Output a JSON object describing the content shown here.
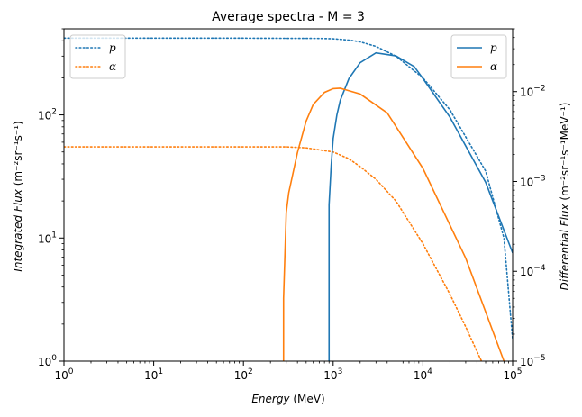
{
  "chart_data": {
    "type": "line",
    "title": "Average spectra - M = 3",
    "x_axis": {
      "label_main": "Energy",
      "label_unit": "(MeV)",
      "scale": "log",
      "range": [
        1,
        100000
      ],
      "tick_labels": [
        "10^0",
        "10^1",
        "10^2",
        "10^3",
        "10^4",
        "10^5"
      ]
    },
    "y_left_axis": {
      "label_main": "Integrated Flux",
      "label_unit": "(m⁻²sr⁻¹s⁻¹)",
      "scale": "log",
      "range": [
        1,
        500
      ],
      "tick_labels": [
        "10^0",
        "10^1",
        "10^2"
      ]
    },
    "y_right_axis": {
      "label_main": "Differential Flux",
      "label_unit": "(m⁻²sr⁻¹s⁻¹MeV⁻¹)",
      "scale": "log",
      "range": [
        1e-05,
        0.05
      ],
      "tick_labels": [
        "10^-5",
        "10^-4",
        "10^-3",
        "10^-2"
      ]
    },
    "legend_left": {
      "placement": "upper-left",
      "entries": [
        "p",
        "α"
      ],
      "style": "dotted"
    },
    "legend_right": {
      "placement": "upper-right",
      "entries": [
        "p",
        "α"
      ],
      "style": "solid"
    },
    "colors": {
      "p": "#1f77b4",
      "alpha": "#ff7f0e"
    },
    "series": [
      {
        "name": "p",
        "axis": "left",
        "style": "dotted",
        "color": "#1f77b4",
        "x": [
          1,
          10,
          100,
          700,
          1000,
          1500,
          2000,
          3000,
          5000,
          10000,
          20000,
          50000,
          80000,
          100000
        ],
        "y": [
          420,
          420,
          420,
          418,
          415,
          405,
          392,
          360,
          300,
          200,
          110,
          35,
          10,
          1.5
        ]
      },
      {
        "name": "α",
        "axis": "left",
        "style": "dotted",
        "color": "#ff7f0e",
        "x": [
          1,
          10,
          100,
          300,
          500,
          1000,
          1500,
          2000,
          3000,
          5000,
          10000,
          20000,
          30000,
          40000,
          45000
        ],
        "y": [
          55,
          55,
          55,
          55,
          54,
          50,
          44,
          38,
          30,
          20,
          9,
          3.5,
          1.9,
          1.2,
          1.0
        ]
      },
      {
        "name": "p",
        "axis": "right",
        "style": "solid",
        "color": "#1f77b4",
        "x": [
          900,
          900,
          950,
          1000,
          1100,
          1200,
          1500,
          2000,
          3000,
          5000,
          8000,
          10000,
          20000,
          50000,
          100000
        ],
        "y": [
          1e-05,
          0.00055,
          0.0015,
          0.003,
          0.0055,
          0.008,
          0.014,
          0.021,
          0.027,
          0.025,
          0.019,
          0.014,
          0.0052,
          0.00098,
          0.00016
        ]
      },
      {
        "name": "α",
        "axis": "right",
        "style": "solid",
        "color": "#ff7f0e",
        "x": [
          280,
          280,
          300,
          320,
          400,
          500,
          600,
          800,
          1000,
          1200,
          2000,
          4000,
          10000,
          30000,
          80000
        ],
        "y": [
          1e-05,
          5e-05,
          0.00045,
          0.00075,
          0.0021,
          0.0047,
          0.0072,
          0.0098,
          0.0108,
          0.0109,
          0.0094,
          0.0058,
          0.0014,
          0.00014,
          1e-05
        ]
      }
    ]
  }
}
